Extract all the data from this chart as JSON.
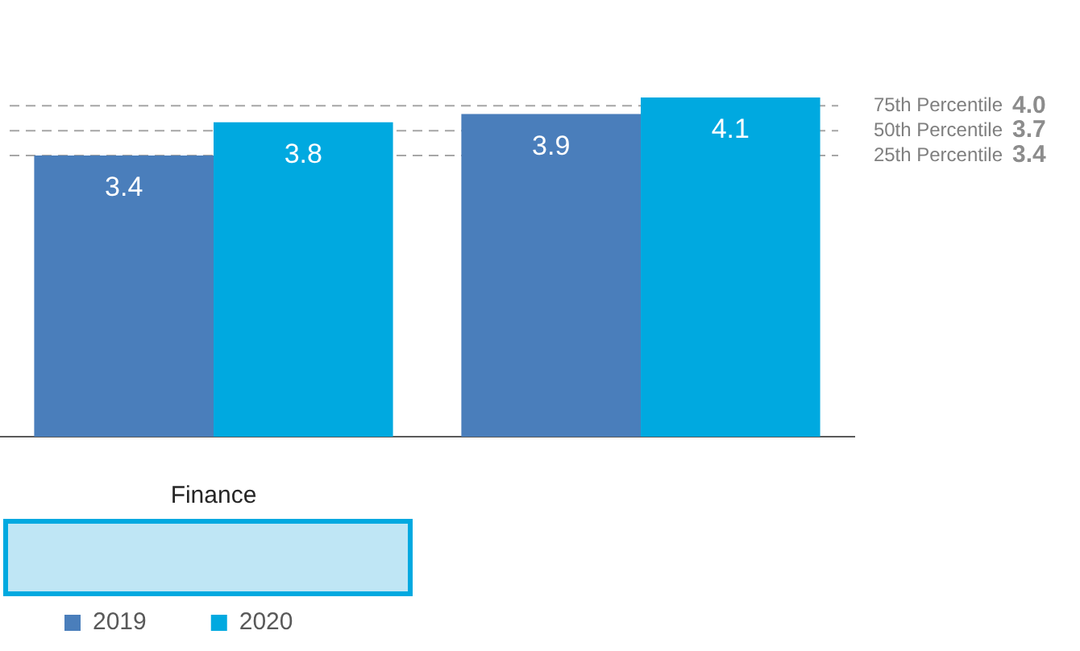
{
  "chart_data": {
    "type": "bar",
    "categories": [
      "Finance",
      null
    ],
    "series": [
      {
        "name": "2019",
        "color": "#4a7ebb",
        "values": [
          3.4,
          3.9
        ]
      },
      {
        "name": "2020",
        "color": "#00a9e0",
        "values": [
          3.8,
          4.1
        ]
      }
    ],
    "tick_labels": "x",
    "data_labels": true,
    "legend": "bottom left",
    "ref_lines": [
      {
        "axis": "y",
        "value": 4.0,
        "label": "75th Percentile 4.0",
        "color": "#a6a6a6",
        "line_style": "dashed"
      },
      {
        "axis": "y",
        "value": 3.7,
        "label": "50th Percentile 3.7",
        "color": "#a6a6a6",
        "line_style": "dashed"
      },
      {
        "axis": "y",
        "value": 3.4,
        "label": "25th Percentile 3.4",
        "color": "#a6a6a6",
        "line_style": "dashed"
      }
    ]
  }
}
